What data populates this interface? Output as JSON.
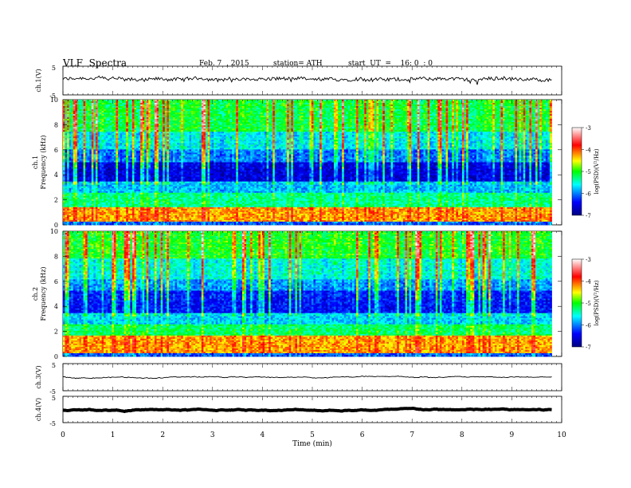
{
  "header": {
    "title": "VLF  Spectra",
    "date": "Feb. 7  , 2015",
    "station": "station= ATH",
    "start": "start  UT  =    16: 0  : 0"
  },
  "chart_data": [
    {
      "type": "line",
      "panel": "ch1-waveform",
      "ylabel": "ch.1(V)",
      "ytick_labels": [
        "5",
        "-5"
      ],
      "ylim": [
        -5,
        5
      ],
      "xlim": [
        0,
        10
      ],
      "series": [
        {
          "x": [
            0,
            9.8
          ],
          "values": [
            0,
            0
          ]
        }
      ],
      "color": "#000000"
    },
    {
      "type": "heatmap",
      "panel": "ch1-spectrogram",
      "ylabel_channel": "ch.1",
      "ylabel": "Frequency  (kHz)",
      "ytick_labels": [
        "0",
        "2",
        "4",
        "6",
        "8",
        "10"
      ],
      "ylim": [
        0,
        10
      ],
      "xlim": [
        0,
        10
      ],
      "data_end_min": 9.8,
      "bands_khz": [
        {
          "from": 0,
          "to": 0.3,
          "level": -6.2
        },
        {
          "from": 0.3,
          "to": 1.4,
          "level": -4.3
        },
        {
          "from": 1.4,
          "to": 2.6,
          "level": -5.4
        },
        {
          "from": 2.6,
          "to": 3.4,
          "level": -5.9
        },
        {
          "from": 3.4,
          "to": 5.0,
          "level": -6.7
        },
        {
          "from": 5.0,
          "to": 6.0,
          "level": -6.2
        },
        {
          "from": 6.0,
          "to": 7.5,
          "level": -5.8
        },
        {
          "from": 7.5,
          "to": 10.0,
          "level": -5.3
        }
      ],
      "colorbar": {
        "label": "log(PSD)(V²/Hz)",
        "tick_labels": [
          "-3",
          "-4",
          "-5",
          "-6",
          "-7"
        ],
        "range": [
          -7,
          -3
        ]
      }
    },
    {
      "type": "heatmap",
      "panel": "ch2-spectrogram",
      "ylabel_channel": "ch.2",
      "ylabel": "Frequency  (kHz)",
      "ytick_labels": [
        "0",
        "2",
        "4",
        "6",
        "8",
        "10"
      ],
      "ylim": [
        0,
        10
      ],
      "xlim": [
        0,
        10
      ],
      "data_end_min": 9.8,
      "bands_khz": [
        {
          "from": 0,
          "to": 0.3,
          "level": -6.2
        },
        {
          "from": 0.3,
          "to": 1.7,
          "level": -4.3
        },
        {
          "from": 1.7,
          "to": 2.6,
          "level": -5.3
        },
        {
          "from": 2.6,
          "to": 3.4,
          "level": -5.8
        },
        {
          "from": 3.4,
          "to": 5.2,
          "level": -6.5
        },
        {
          "from": 5.2,
          "to": 6.2,
          "level": -6.1
        },
        {
          "from": 6.2,
          "to": 7.8,
          "level": -5.7
        },
        {
          "from": 7.8,
          "to": 10.0,
          "level": -5.2
        }
      ],
      "colorbar": {
        "label": "log(PSD)(V²/Hz)",
        "tick_labels": [
          "-3",
          "-4",
          "-5",
          "-6",
          "-7"
        ],
        "range": [
          -7,
          -3
        ]
      }
    },
    {
      "type": "line",
      "panel": "ch3-waveform",
      "ylabel": "ch.3(V)",
      "ytick_labels": [
        "5",
        "-5"
      ],
      "ylim": [
        -5,
        5
      ],
      "xlim": [
        0,
        10
      ],
      "series": [
        {
          "x": [
            0,
            9.8
          ],
          "values": [
            0,
            0
          ]
        }
      ],
      "color": "#000000"
    },
    {
      "type": "line",
      "panel": "ch4-waveform",
      "ylabel": "ch.4(V)",
      "ytick_labels": [
        "5",
        "-5"
      ],
      "ylim": [
        -5,
        5
      ],
      "xlim": [
        0,
        10
      ],
      "series": [
        {
          "x": [
            0,
            9.8
          ],
          "values": [
            0,
            0
          ]
        }
      ],
      "color": "#000000"
    }
  ],
  "xaxis": {
    "label": "Time  (min)",
    "tick_labels": [
      "0",
      "1",
      "2",
      "3",
      "4",
      "5",
      "6",
      "7",
      "8",
      "9",
      "10"
    ],
    "range": [
      0,
      10
    ]
  },
  "colors": {
    "colormap": [
      "#000080",
      "#0000ff",
      "#00ffff",
      "#00ff00",
      "#ffff00",
      "#ff0000",
      "#ffffff"
    ]
  }
}
